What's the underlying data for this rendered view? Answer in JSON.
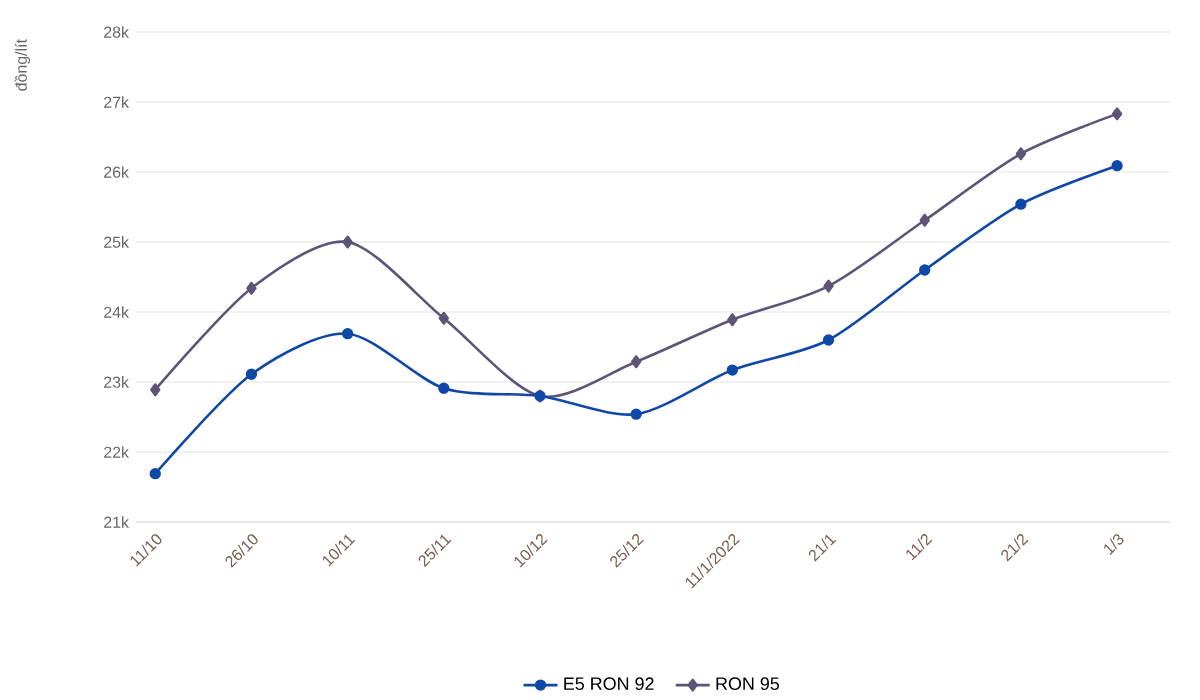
{
  "chart_data": {
    "type": "line",
    "ylabel": "đồng/lít",
    "categories": [
      "11/10",
      "26/10",
      "10/11",
      "25/11",
      "10/12",
      "25/12",
      "11/1/2022",
      "21/1",
      "11/2",
      "21/2",
      "1/3"
    ],
    "series": [
      {
        "name": "E5 RON 92",
        "color": "#1048a8",
        "marker": "circle",
        "values": [
          21690,
          23110,
          23690,
          22910,
          22800,
          22540,
          23170,
          23600,
          24600,
          25540,
          26090
        ]
      },
      {
        "name": "RON 95",
        "color": "#5e5478",
        "marker": "diamond",
        "values": [
          22890,
          24340,
          25000,
          23910,
          22800,
          23290,
          23890,
          24370,
          25310,
          26260,
          26830
        ]
      }
    ],
    "ylim": [
      21000,
      28000
    ],
    "yticks": [
      {
        "value": 21000,
        "label": "21k"
      },
      {
        "value": 22000,
        "label": "22k"
      },
      {
        "value": 23000,
        "label": "23k"
      },
      {
        "value": 24000,
        "label": "24k"
      },
      {
        "value": 25000,
        "label": "25k"
      },
      {
        "value": 26000,
        "label": "26k"
      },
      {
        "value": 27000,
        "label": "27k"
      },
      {
        "value": 28000,
        "label": "28k"
      }
    ],
    "grid": "y",
    "legend": "bottom",
    "line_style": "solid"
  }
}
